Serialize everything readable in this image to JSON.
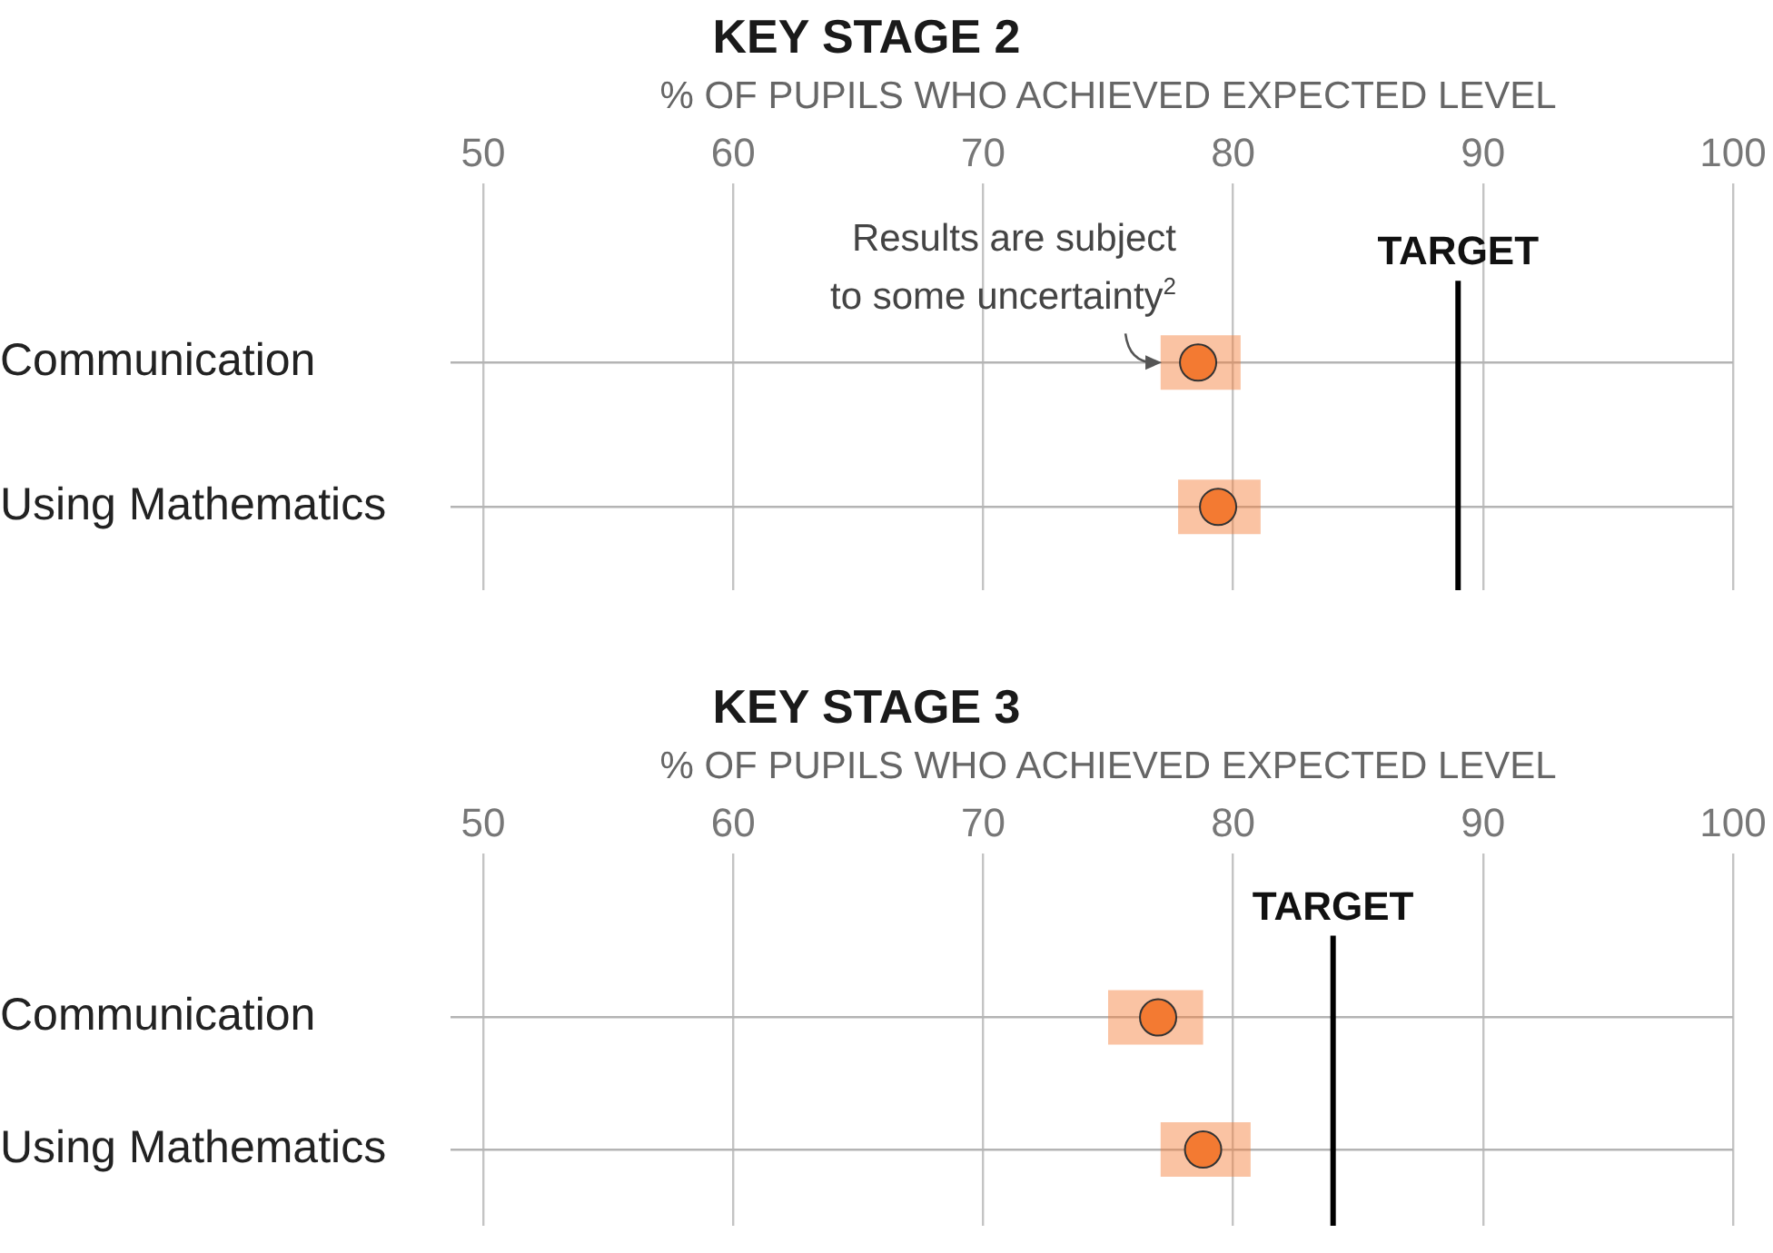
{
  "chart_data": [
    {
      "type": "scatter",
      "orientation": "horizontal",
      "title": "KEY STAGE 2",
      "xlabel": "% OF PUPILS WHO ACHIEVED EXPECTED LEVEL",
      "categories": [
        "Communication",
        "Using Mathematics"
      ],
      "values": [
        78.6,
        79.4
      ],
      "errors": [
        [
          77.1,
          80.3
        ],
        [
          77.8,
          81.1
        ]
      ],
      "color": "#f37a32",
      "marker": "circle",
      "xlim": [
        50,
        100
      ],
      "xticks": [
        50,
        60,
        70,
        80,
        90,
        100
      ],
      "grid": true,
      "legend": false,
      "ref_lines": [
        {
          "axis": "x",
          "value": 89,
          "label": "TARGET",
          "color": "#000000"
        }
      ],
      "annotations": [
        {
          "text": "Results are subject to some uncertainty$^{2}$",
          "x": 78.6,
          "y": "Communication"
        }
      ]
    },
    {
      "type": "scatter",
      "orientation": "horizontal",
      "title": "KEY STAGE 3",
      "xlabel": "% OF PUPILS WHO ACHIEVED EXPECTED LEVEL",
      "categories": [
        "Communication",
        "Using Mathematics"
      ],
      "values": [
        77.0,
        78.8
      ],
      "errors": [
        [
          75.0,
          78.8
        ],
        [
          77.1,
          80.7
        ]
      ],
      "color": "#f37a32",
      "marker": "circle",
      "xlim": [
        50,
        100
      ],
      "xticks": [
        50,
        60,
        70,
        80,
        90,
        100
      ],
      "grid": true,
      "legend": false,
      "ref_lines": [
        {
          "axis": "x",
          "value": 84,
          "label": "TARGET",
          "color": "#000000"
        }
      ]
    }
  ]
}
